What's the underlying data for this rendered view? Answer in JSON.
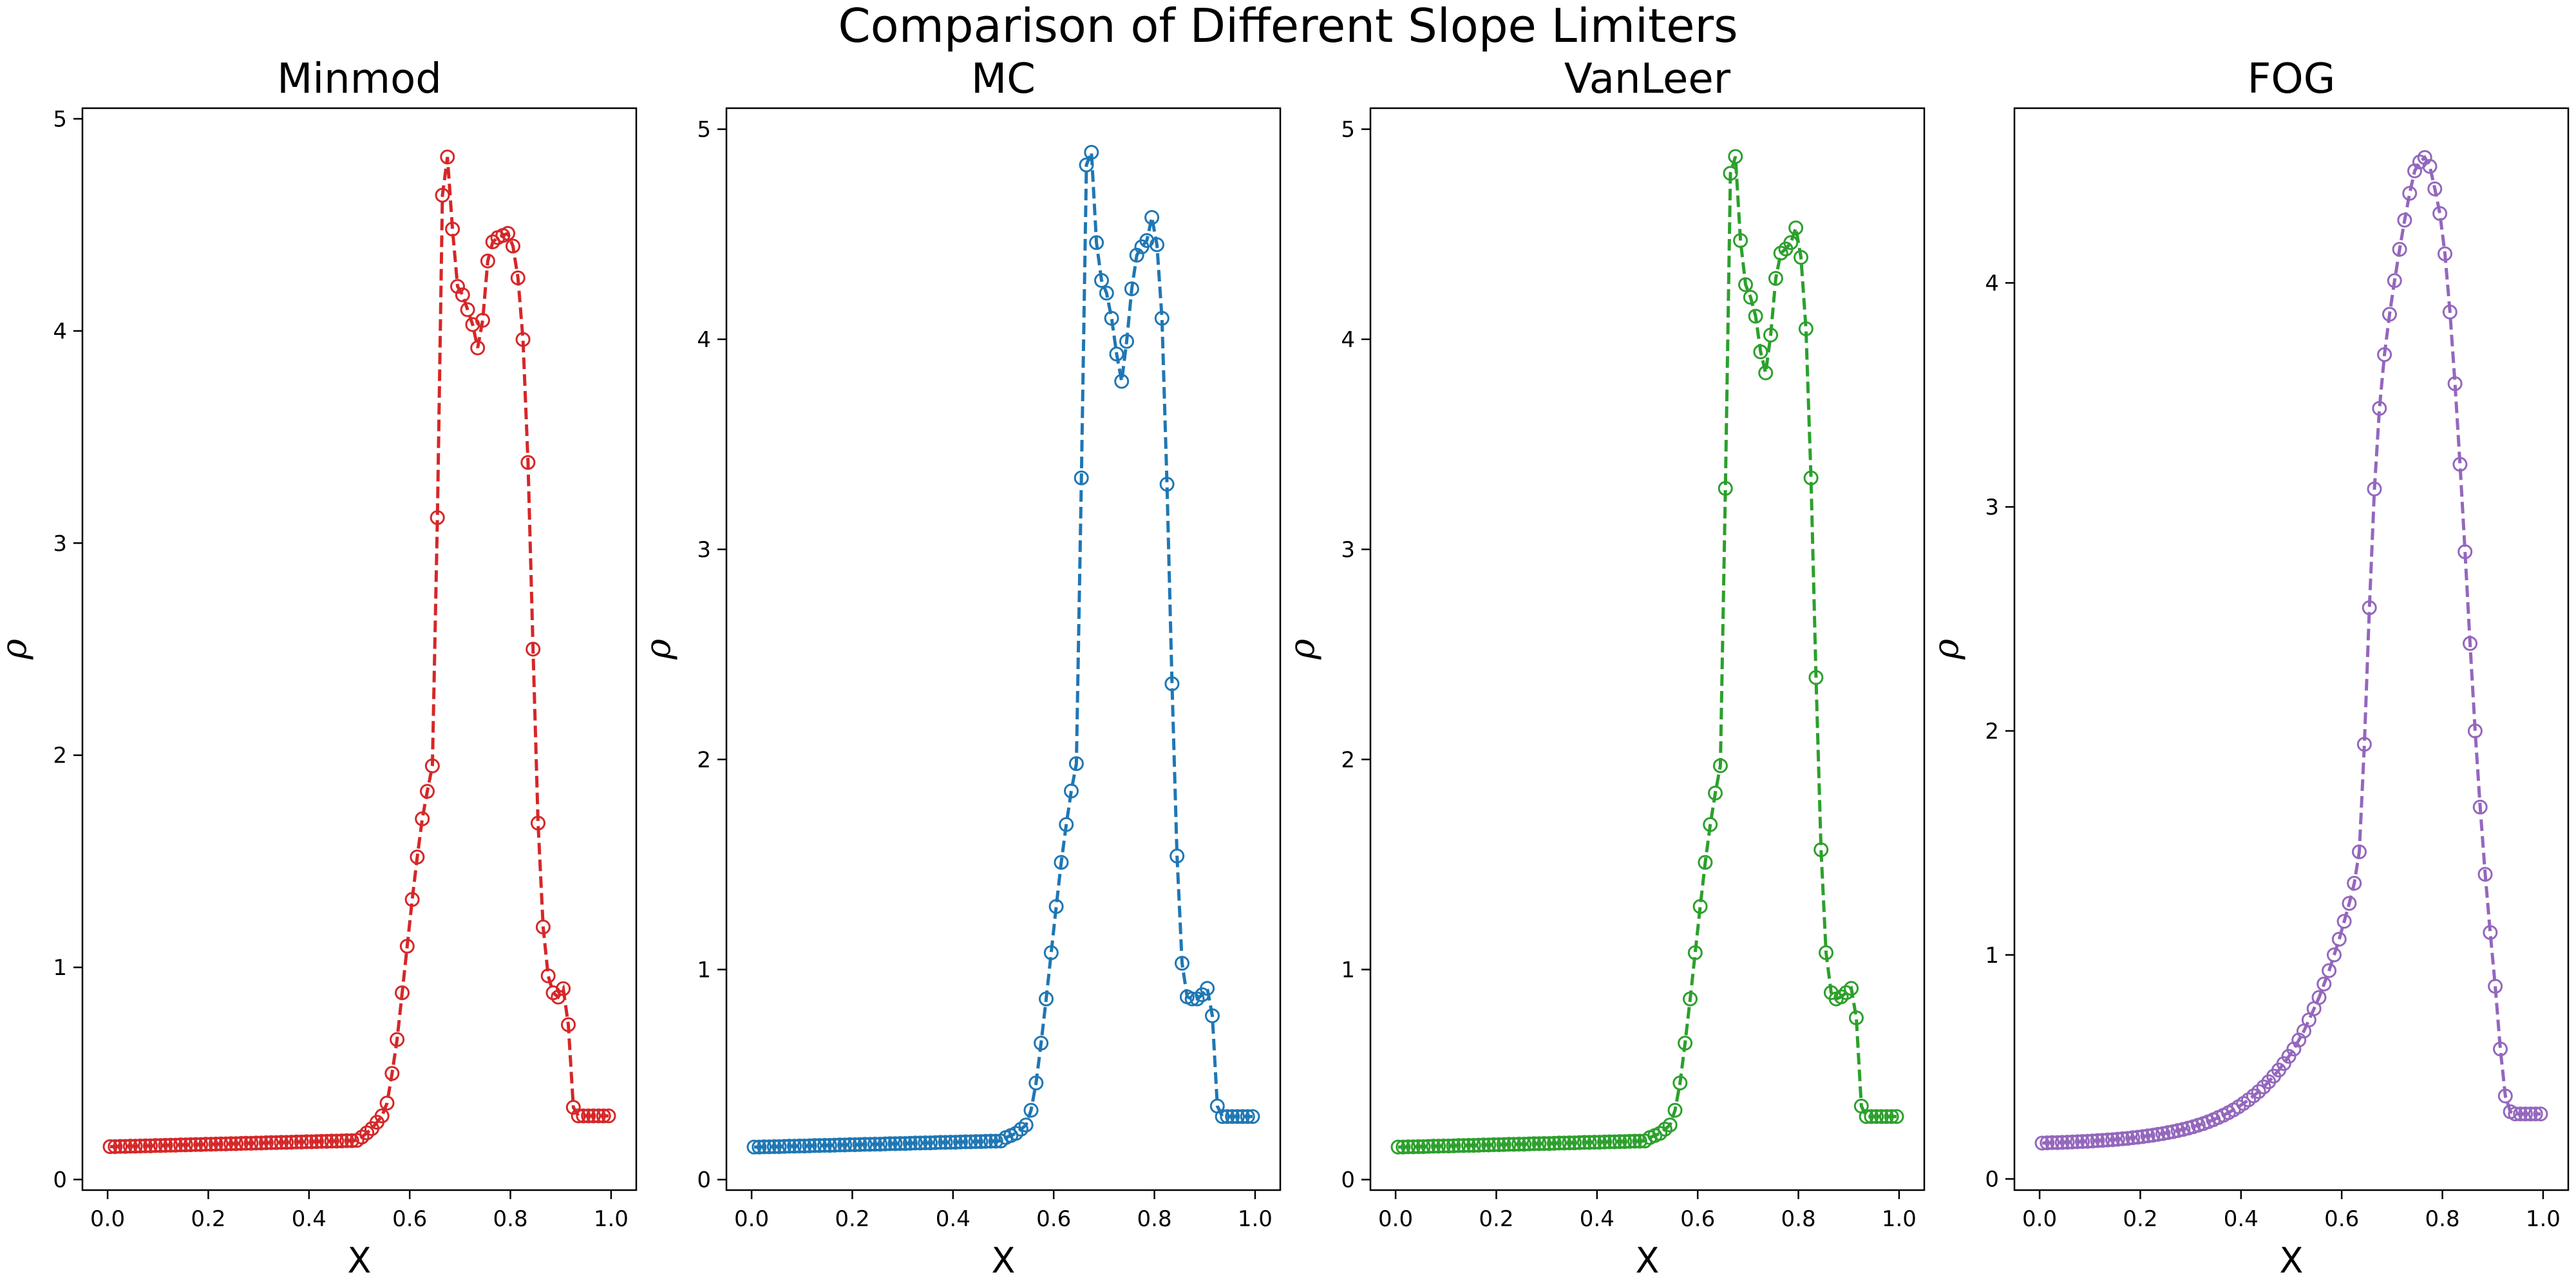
{
  "suptitle": "Comparison of Different Slope Limiters",
  "chart_data": [
    {
      "type": "line",
      "title": "Minmod",
      "xlabel": "X",
      "ylabel": "ρ",
      "color": "#d62728",
      "marker": "open-circle",
      "linestyle": "dashed",
      "xlim": [
        -0.05,
        1.05
      ],
      "ylim": [
        -0.05,
        5.05
      ],
      "xticks": [
        "0.0",
        "0.2",
        "0.4",
        "0.6",
        "0.8",
        "1.0"
      ],
      "yticks": [
        "0",
        "1",
        "2",
        "3",
        "4",
        "5"
      ],
      "grid": false,
      "x": [
        0.005,
        0.015,
        0.025,
        0.035,
        0.045,
        0.055,
        0.065,
        0.075,
        0.085,
        0.095,
        0.105,
        0.115,
        0.125,
        0.135,
        0.145,
        0.155,
        0.165,
        0.175,
        0.185,
        0.195,
        0.205,
        0.215,
        0.225,
        0.235,
        0.245,
        0.255,
        0.265,
        0.275,
        0.285,
        0.295,
        0.305,
        0.315,
        0.325,
        0.335,
        0.345,
        0.355,
        0.365,
        0.375,
        0.385,
        0.395,
        0.405,
        0.415,
        0.425,
        0.435,
        0.445,
        0.455,
        0.465,
        0.475,
        0.485,
        0.495,
        0.505,
        0.515,
        0.525,
        0.535,
        0.545,
        0.555,
        0.565,
        0.575,
        0.585,
        0.595,
        0.605,
        0.615,
        0.625,
        0.635,
        0.645,
        0.655,
        0.665,
        0.675,
        0.685,
        0.695,
        0.705,
        0.715,
        0.725,
        0.735,
        0.745,
        0.755,
        0.765,
        0.775,
        0.785,
        0.795,
        0.805,
        0.815,
        0.825,
        0.835,
        0.845,
        0.855,
        0.865,
        0.875,
        0.885,
        0.895,
        0.905,
        0.915,
        0.925,
        0.935,
        0.945,
        0.955,
        0.965,
        0.975,
        0.985,
        0.995
      ],
      "y": [
        0.155,
        0.155,
        0.156,
        0.156,
        0.157,
        0.157,
        0.158,
        0.159,
        0.159,
        0.16,
        0.16,
        0.161,
        0.162,
        0.162,
        0.163,
        0.163,
        0.164,
        0.165,
        0.165,
        0.166,
        0.166,
        0.167,
        0.168,
        0.168,
        0.169,
        0.169,
        0.17,
        0.171,
        0.171,
        0.172,
        0.172,
        0.173,
        0.174,
        0.174,
        0.175,
        0.175,
        0.176,
        0.177,
        0.177,
        0.178,
        0.178,
        0.179,
        0.18,
        0.18,
        0.181,
        0.181,
        0.182,
        0.183,
        0.183,
        0.184,
        0.2,
        0.22,
        0.24,
        0.27,
        0.3,
        0.36,
        0.5,
        0.66,
        0.88,
        1.1,
        1.32,
        1.52,
        1.7,
        1.83,
        1.95,
        3.12,
        4.64,
        4.82,
        4.48,
        4.21,
        4.17,
        4.1,
        4.03,
        3.92,
        4.05,
        4.33,
        4.42,
        4.44,
        4.45,
        4.46,
        4.4,
        4.25,
        3.96,
        3.38,
        2.5,
        1.68,
        1.19,
        0.96,
        0.88,
        0.86,
        0.9,
        0.73,
        0.34,
        0.3,
        0.3,
        0.3,
        0.3,
        0.3,
        0.3,
        0.3
      ]
    },
    {
      "type": "line",
      "title": "MC",
      "xlabel": "X",
      "ylabel": "ρ",
      "color": "#1f77b4",
      "marker": "open-circle",
      "linestyle": "dashed",
      "xlim": [
        -0.05,
        1.05
      ],
      "ylim": [
        -0.05,
        5.1
      ],
      "xticks": [
        "0.0",
        "0.2",
        "0.4",
        "0.6",
        "0.8",
        "1.0"
      ],
      "yticks": [
        "0",
        "1",
        "2",
        "3",
        "4",
        "5"
      ],
      "grid": false,
      "x": [
        0.005,
        0.015,
        0.025,
        0.035,
        0.045,
        0.055,
        0.065,
        0.075,
        0.085,
        0.095,
        0.105,
        0.115,
        0.125,
        0.135,
        0.145,
        0.155,
        0.165,
        0.175,
        0.185,
        0.195,
        0.205,
        0.215,
        0.225,
        0.235,
        0.245,
        0.255,
        0.265,
        0.275,
        0.285,
        0.295,
        0.305,
        0.315,
        0.325,
        0.335,
        0.345,
        0.355,
        0.365,
        0.375,
        0.385,
        0.395,
        0.405,
        0.415,
        0.425,
        0.435,
        0.445,
        0.455,
        0.465,
        0.475,
        0.485,
        0.495,
        0.505,
        0.515,
        0.525,
        0.535,
        0.545,
        0.555,
        0.565,
        0.575,
        0.585,
        0.595,
        0.605,
        0.615,
        0.625,
        0.635,
        0.645,
        0.655,
        0.665,
        0.675,
        0.685,
        0.695,
        0.705,
        0.715,
        0.725,
        0.735,
        0.745,
        0.755,
        0.765,
        0.775,
        0.785,
        0.795,
        0.805,
        0.815,
        0.825,
        0.835,
        0.845,
        0.855,
        0.865,
        0.875,
        0.885,
        0.895,
        0.905,
        0.915,
        0.925,
        0.935,
        0.945,
        0.955,
        0.965,
        0.975,
        0.985,
        0.995
      ],
      "y": [
        0.155,
        0.155,
        0.156,
        0.156,
        0.157,
        0.157,
        0.158,
        0.159,
        0.159,
        0.16,
        0.16,
        0.161,
        0.162,
        0.162,
        0.163,
        0.163,
        0.164,
        0.165,
        0.165,
        0.166,
        0.166,
        0.167,
        0.168,
        0.168,
        0.169,
        0.169,
        0.17,
        0.171,
        0.171,
        0.172,
        0.172,
        0.173,
        0.174,
        0.174,
        0.175,
        0.175,
        0.176,
        0.177,
        0.177,
        0.178,
        0.178,
        0.179,
        0.18,
        0.18,
        0.181,
        0.181,
        0.182,
        0.183,
        0.183,
        0.184,
        0.2,
        0.21,
        0.22,
        0.24,
        0.26,
        0.33,
        0.46,
        0.65,
        0.86,
        1.08,
        1.3,
        1.51,
        1.69,
        1.85,
        1.98,
        3.34,
        4.83,
        4.89,
        4.46,
        4.28,
        4.22,
        4.1,
        3.93,
        3.8,
        3.99,
        4.24,
        4.4,
        4.44,
        4.47,
        4.58,
        4.45,
        4.1,
        3.31,
        2.36,
        1.54,
        1.03,
        0.87,
        0.86,
        0.86,
        0.88,
        0.91,
        0.78,
        0.35,
        0.3,
        0.3,
        0.3,
        0.3,
        0.3,
        0.3,
        0.3
      ]
    },
    {
      "type": "line",
      "title": "VanLeer",
      "xlabel": "X",
      "ylabel": "ρ",
      "color": "#2ca02c",
      "marker": "open-circle",
      "linestyle": "dashed",
      "xlim": [
        -0.05,
        1.05
      ],
      "ylim": [
        -0.05,
        5.1
      ],
      "xticks": [
        "0.0",
        "0.2",
        "0.4",
        "0.6",
        "0.8",
        "1.0"
      ],
      "yticks": [
        "0",
        "1",
        "2",
        "3",
        "4",
        "5"
      ],
      "grid": false,
      "x": [
        0.005,
        0.015,
        0.025,
        0.035,
        0.045,
        0.055,
        0.065,
        0.075,
        0.085,
        0.095,
        0.105,
        0.115,
        0.125,
        0.135,
        0.145,
        0.155,
        0.165,
        0.175,
        0.185,
        0.195,
        0.205,
        0.215,
        0.225,
        0.235,
        0.245,
        0.255,
        0.265,
        0.275,
        0.285,
        0.295,
        0.305,
        0.315,
        0.325,
        0.335,
        0.345,
        0.355,
        0.365,
        0.375,
        0.385,
        0.395,
        0.405,
        0.415,
        0.425,
        0.435,
        0.445,
        0.455,
        0.465,
        0.475,
        0.485,
        0.495,
        0.505,
        0.515,
        0.525,
        0.535,
        0.545,
        0.555,
        0.565,
        0.575,
        0.585,
        0.595,
        0.605,
        0.615,
        0.625,
        0.635,
        0.645,
        0.655,
        0.665,
        0.675,
        0.685,
        0.695,
        0.705,
        0.715,
        0.725,
        0.735,
        0.745,
        0.755,
        0.765,
        0.775,
        0.785,
        0.795,
        0.805,
        0.815,
        0.825,
        0.835,
        0.845,
        0.855,
        0.865,
        0.875,
        0.885,
        0.895,
        0.905,
        0.915,
        0.925,
        0.935,
        0.945,
        0.955,
        0.965,
        0.975,
        0.985,
        0.995
      ],
      "y": [
        0.155,
        0.155,
        0.156,
        0.156,
        0.157,
        0.157,
        0.158,
        0.159,
        0.159,
        0.16,
        0.16,
        0.161,
        0.162,
        0.162,
        0.163,
        0.163,
        0.164,
        0.165,
        0.165,
        0.166,
        0.166,
        0.167,
        0.168,
        0.168,
        0.169,
        0.169,
        0.17,
        0.171,
        0.171,
        0.172,
        0.172,
        0.173,
        0.174,
        0.174,
        0.175,
        0.175,
        0.176,
        0.177,
        0.177,
        0.178,
        0.178,
        0.179,
        0.18,
        0.18,
        0.181,
        0.181,
        0.182,
        0.183,
        0.183,
        0.184,
        0.2,
        0.21,
        0.22,
        0.24,
        0.26,
        0.33,
        0.46,
        0.65,
        0.86,
        1.08,
        1.3,
        1.51,
        1.69,
        1.84,
        1.97,
        3.29,
        4.79,
        4.87,
        4.47,
        4.26,
        4.2,
        4.11,
        3.94,
        3.84,
        4.02,
        4.29,
        4.41,
        4.43,
        4.46,
        4.53,
        4.39,
        4.05,
        3.34,
        2.39,
        1.57,
        1.08,
        0.89,
        0.86,
        0.87,
        0.89,
        0.91,
        0.77,
        0.35,
        0.3,
        0.3,
        0.3,
        0.3,
        0.3,
        0.3,
        0.3
      ]
    },
    {
      "type": "line",
      "title": "FOG",
      "xlabel": "X",
      "ylabel": "ρ",
      "color": "#9467bd",
      "marker": "open-circle",
      "linestyle": "dashed",
      "xlim": [
        -0.05,
        1.05
      ],
      "ylim": [
        -0.05,
        4.78
      ],
      "xticks": [
        "0.0",
        "0.2",
        "0.4",
        "0.6",
        "0.8",
        "1.0"
      ],
      "yticks": [
        "0",
        "1",
        "2",
        "3",
        "4"
      ],
      "grid": false,
      "x": [
        0.005,
        0.015,
        0.025,
        0.035,
        0.045,
        0.055,
        0.065,
        0.075,
        0.085,
        0.095,
        0.105,
        0.115,
        0.125,
        0.135,
        0.145,
        0.155,
        0.165,
        0.175,
        0.185,
        0.195,
        0.205,
        0.215,
        0.225,
        0.235,
        0.245,
        0.255,
        0.265,
        0.275,
        0.285,
        0.295,
        0.305,
        0.315,
        0.325,
        0.335,
        0.345,
        0.355,
        0.365,
        0.375,
        0.385,
        0.395,
        0.405,
        0.415,
        0.425,
        0.435,
        0.445,
        0.455,
        0.465,
        0.475,
        0.485,
        0.495,
        0.505,
        0.515,
        0.525,
        0.535,
        0.545,
        0.555,
        0.565,
        0.575,
        0.585,
        0.595,
        0.605,
        0.615,
        0.625,
        0.635,
        0.645,
        0.655,
        0.665,
        0.675,
        0.685,
        0.695,
        0.705,
        0.715,
        0.725,
        0.735,
        0.745,
        0.755,
        0.765,
        0.775,
        0.785,
        0.795,
        0.805,
        0.815,
        0.825,
        0.835,
        0.845,
        0.855,
        0.865,
        0.875,
        0.885,
        0.895,
        0.905,
        0.915,
        0.925,
        0.935,
        0.945,
        0.955,
        0.965,
        0.975,
        0.985,
        0.995
      ],
      "y": [
        0.16,
        0.161,
        0.162,
        0.162,
        0.163,
        0.164,
        0.165,
        0.166,
        0.167,
        0.168,
        0.169,
        0.171,
        0.172,
        0.174,
        0.175,
        0.177,
        0.179,
        0.181,
        0.184,
        0.186,
        0.189,
        0.192,
        0.195,
        0.199,
        0.202,
        0.207,
        0.211,
        0.216,
        0.221,
        0.227,
        0.233,
        0.24,
        0.247,
        0.255,
        0.264,
        0.274,
        0.284,
        0.296,
        0.308,
        0.322,
        0.337,
        0.353,
        0.371,
        0.39,
        0.411,
        0.434,
        0.459,
        0.486,
        0.515,
        0.547,
        0.58,
        0.62,
        0.66,
        0.71,
        0.76,
        0.81,
        0.87,
        0.93,
        1.0,
        1.07,
        1.15,
        1.23,
        1.32,
        1.46,
        1.94,
        2.55,
        3.08,
        3.44,
        3.68,
        3.86,
        4.01,
        4.15,
        4.28,
        4.4,
        4.5,
        4.54,
        4.56,
        4.52,
        4.42,
        4.31,
        4.13,
        3.87,
        3.55,
        3.19,
        2.8,
        2.39,
        2.0,
        1.66,
        1.36,
        1.1,
        0.86,
        0.58,
        0.37,
        0.3,
        0.29,
        0.29,
        0.29,
        0.29,
        0.29,
        0.29
      ]
    }
  ]
}
